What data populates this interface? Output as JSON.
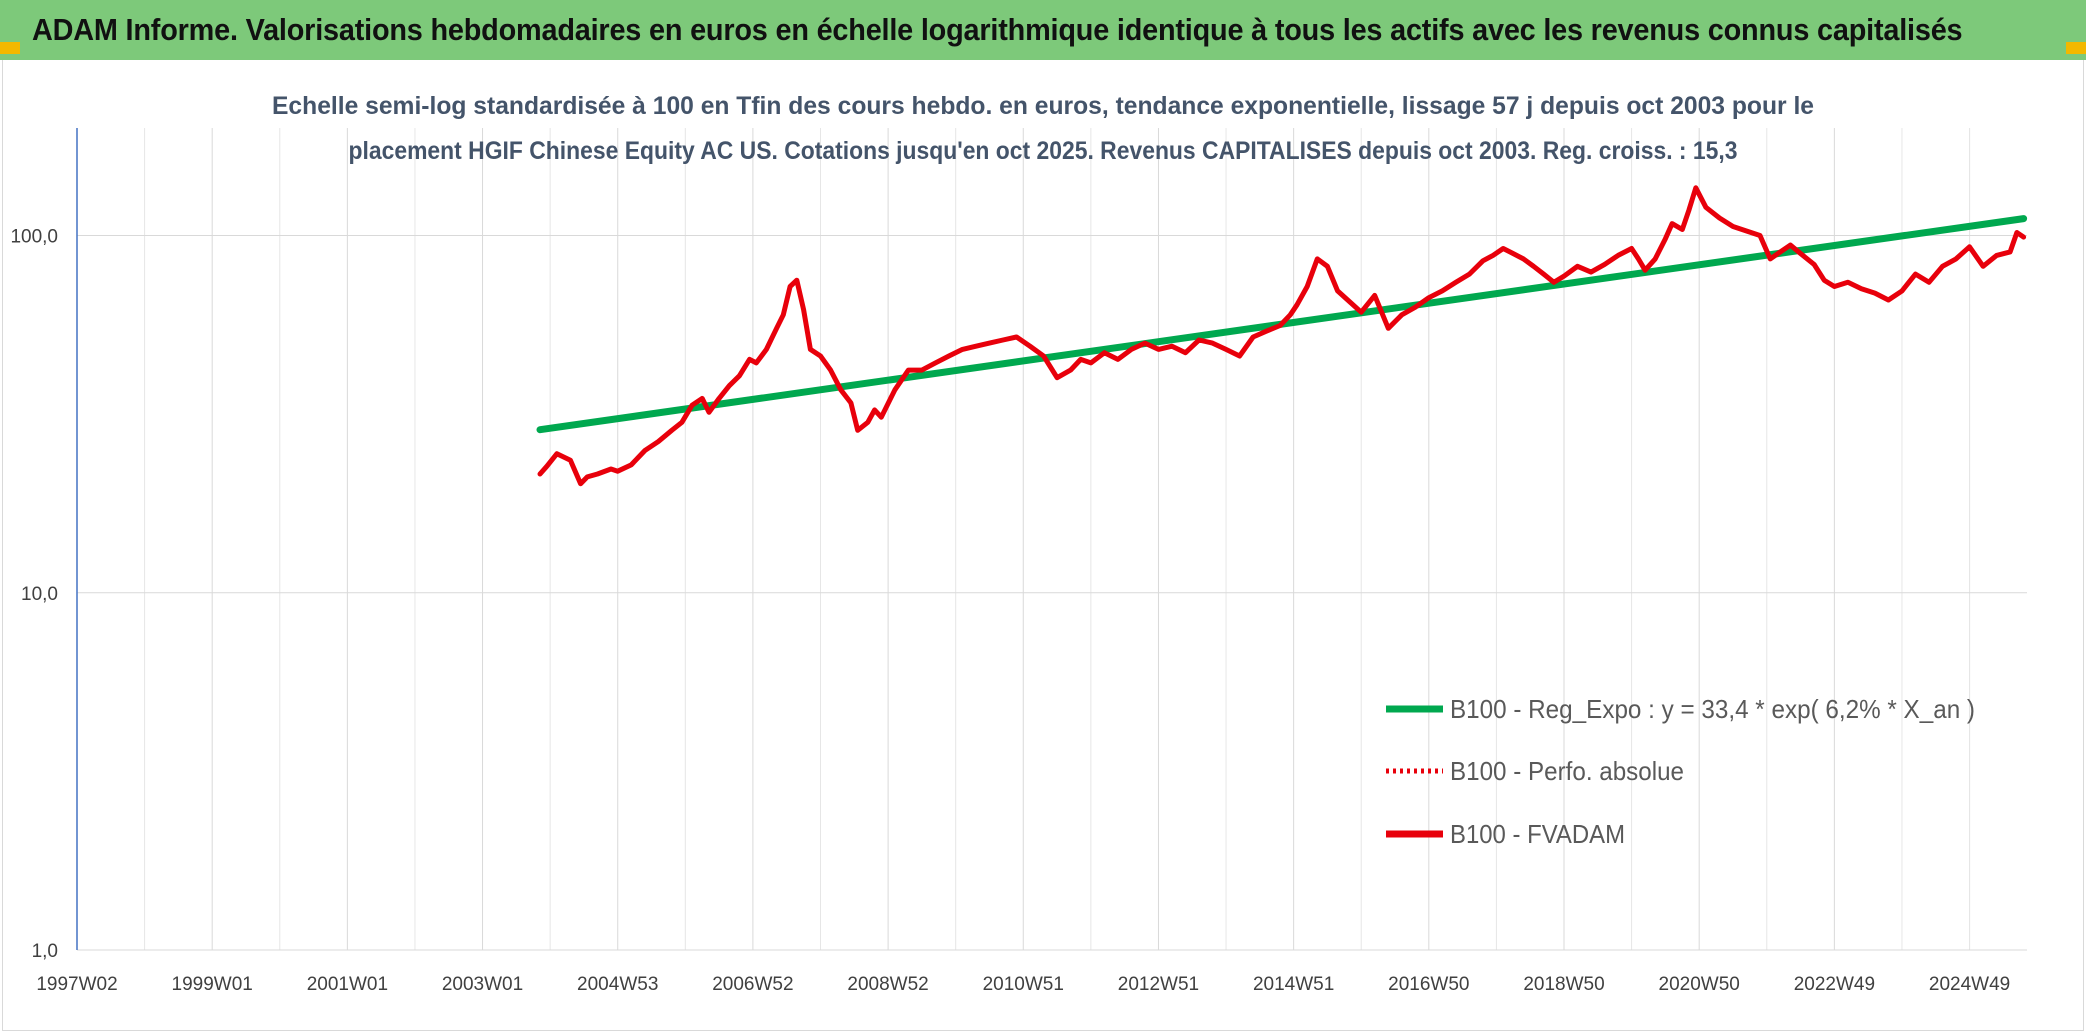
{
  "header": {
    "title": "ADAM Informe. Valorisations hebdomadaires en euros en échelle logarithmique identique à tous les actifs avec les revenus connus capitalisés"
  },
  "colors": {
    "banner": "#7dc97a",
    "corner": "#f3b800",
    "trend": "#00a84f",
    "price": "#e8000b"
  },
  "chart_data": {
    "type": "line",
    "title_lines": [
      "Echelle semi-log standardisée à 100 en Tfin des cours hebdo. en euros, tendance exponentielle, lissage 57 j depuis oct 2003 pour le",
      "placement HGIF Chinese Equity AC US. Cotations jusqu'en oct 2025. Revenus CAPITALISES depuis oct 2003. Reg. croiss. : 15,3"
    ],
    "y_scale": "log",
    "ylim": [
      1,
      200
    ],
    "y_ticks": [
      1,
      10,
      100
    ],
    "y_tick_labels": [
      "1,0",
      "10,0",
      "100,0"
    ],
    "xlim": [
      1997.0,
      2025.85
    ],
    "x_tick_positions": [
      1997.0,
      1999.0,
      2001.0,
      2003.0,
      2005.0,
      2007.0,
      2009.0,
      2011.0,
      2013.0,
      2015.0,
      2017.0,
      2019.0,
      2021.0,
      2023.0,
      2025.0
    ],
    "x_tick_labels": [
      "1997W02",
      "1999W01",
      "2001W01",
      "2003W01",
      "2004W53",
      "2006W52",
      "2008W52",
      "2010W51",
      "2012W51",
      "2014W51",
      "2016W50",
      "2018W50",
      "2020W50",
      "2022W49",
      "2024W49"
    ],
    "grid": "vertical and horizontal",
    "legend_position": "bottom-right",
    "series": [
      {
        "name": "B100 - Reg_Expo : y = 33,4 * exp( 6,2% *  X_an )",
        "style": "solid",
        "color": "#00a84f",
        "x": [
          2003.85,
          2025.8
        ],
        "y": [
          28.6,
          111.5
        ]
      },
      {
        "name": "B100 - Perfo. absolue",
        "style": "dotted",
        "color": "#e8000b",
        "x": [],
        "y": []
      },
      {
        "name": "B100 - FVADAM",
        "style": "solid",
        "color": "#e8000b",
        "x": [
          2003.85,
          2003.95,
          2004.1,
          2004.3,
          2004.45,
          2004.55,
          2004.7,
          2004.9,
          2005.0,
          2005.2,
          2005.4,
          2005.6,
          2005.8,
          2005.95,
          2006.1,
          2006.25,
          2006.35,
          2006.5,
          2006.65,
          2006.8,
          2006.95,
          2007.05,
          2007.2,
          2007.35,
          2007.45,
          2007.55,
          2007.65,
          2007.75,
          2007.85,
          2008.0,
          2008.15,
          2008.3,
          2008.45,
          2008.55,
          2008.7,
          2008.8,
          2008.9,
          2009.1,
          2009.3,
          2009.5,
          2009.7,
          2009.9,
          2010.1,
          2010.3,
          2010.5,
          2010.7,
          2010.9,
          2011.1,
          2011.3,
          2011.5,
          2011.7,
          2011.85,
          2012.0,
          2012.2,
          2012.4,
          2012.6,
          2012.8,
          2013.0,
          2013.2,
          2013.4,
          2013.6,
          2013.8,
          2014.0,
          2014.2,
          2014.4,
          2014.6,
          2014.8,
          2014.95,
          2015.05,
          2015.2,
          2015.35,
          2015.5,
          2015.65,
          2015.8,
          2016.0,
          2016.2,
          2016.4,
          2016.6,
          2016.8,
          2017.0,
          2017.2,
          2017.4,
          2017.6,
          2017.8,
          2017.95,
          2018.1,
          2018.25,
          2018.4,
          2018.55,
          2018.7,
          2018.85,
          2019.0,
          2019.2,
          2019.4,
          2019.6,
          2019.8,
          2020.0,
          2020.1,
          2020.2,
          2020.35,
          2020.5,
          2020.6,
          2020.75,
          2020.85,
          2020.95,
          2021.1,
          2021.3,
          2021.5,
          2021.7,
          2021.9,
          2022.05,
          2022.2,
          2022.35,
          2022.5,
          2022.7,
          2022.85,
          2023.0,
          2023.2,
          2023.4,
          2023.6,
          2023.8,
          2024.0,
          2024.2,
          2024.4,
          2024.6,
          2024.8,
          2025.0,
          2025.2,
          2025.4,
          2025.6,
          2025.7,
          2025.8
        ],
        "y": [
          21.5,
          22.6,
          24.5,
          23.5,
          20.2,
          21.1,
          21.5,
          22.2,
          21.9,
          22.8,
          25.0,
          26.5,
          28.5,
          30.0,
          33.5,
          35.0,
          32.0,
          35.0,
          38.0,
          40.5,
          45.0,
          44.0,
          48.0,
          55.0,
          60.0,
          72.0,
          75.0,
          62.0,
          48.0,
          46.0,
          42.0,
          37.0,
          34.0,
          28.5,
          30.0,
          32.5,
          31.0,
          37.0,
          42.0,
          42.0,
          44.0,
          46.0,
          48.0,
          49.0,
          50.0,
          51.0,
          52.0,
          49.0,
          46.0,
          40.0,
          42.0,
          45.0,
          44.0,
          47.0,
          45.0,
          48.0,
          50.0,
          48.0,
          49.0,
          47.0,
          51.0,
          50.0,
          48.0,
          46.0,
          52.0,
          54.0,
          56.0,
          60.0,
          64.0,
          72.0,
          86.0,
          82.0,
          70.0,
          66.0,
          61.0,
          68.0,
          55.0,
          60.0,
          63.0,
          67.0,
          70.0,
          74.0,
          78.0,
          85.0,
          88.0,
          92.0,
          89.0,
          86.0,
          82.0,
          78.0,
          74.0,
          77.0,
          82.0,
          79.0,
          83.0,
          88.0,
          92.0,
          86.0,
          80.0,
          86.0,
          98.0,
          108.0,
          104.0,
          118.0,
          136.0,
          120.0,
          112.0,
          106.0,
          103.0,
          100.0,
          86.0,
          90.0,
          94.0,
          89.0,
          83.0,
          75.0,
          72.0,
          74.0,
          71.0,
          69.0,
          66.0,
          70.0,
          78.0,
          74.0,
          82.0,
          86.0,
          93.0,
          82.0,
          88.0,
          90.0,
          102.0,
          99.0
        ]
      }
    ]
  }
}
